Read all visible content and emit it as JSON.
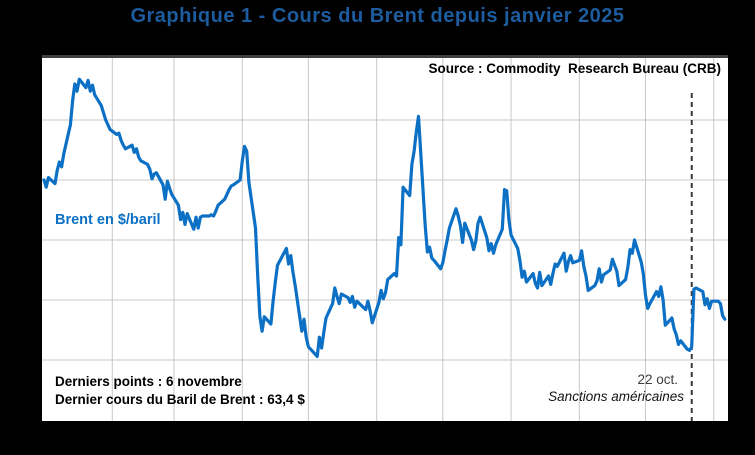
{
  "page": {
    "title": "Graphique 1 - Cours du Brent depuis janvier 2025",
    "source_label": "Source : Commodity  Research Bureau (CRB)",
    "series_label": "Brent en $/baril",
    "footnote_line1": "Derniers points : 6 novembre",
    "footnote_line2": "Dernier cours du Baril de Brent : 63,4 $",
    "annotation_date": "22 oct.",
    "annotation_text": "Sanctions américaines"
  },
  "colors": {
    "background": "#000000",
    "title": "#1d5c9e",
    "line": "#0c70c4",
    "grid": "#c8c8c8",
    "dashed": "#3a3a3a",
    "plot_bg": "#ffffff"
  },
  "chart_data": {
    "type": "line",
    "title": "Graphique 1 - Cours du Brent depuis janvier 2025",
    "ylabel": "Brent en $/baril ($)",
    "ylim": [
      55,
      85
    ],
    "y_gridlines": [
      80,
      75,
      70,
      65,
      60
    ],
    "x_gridlines": "monthly (fév. à nov. 2025)",
    "x_range": [
      "2025-01-01",
      "2025-11-06"
    ],
    "legend_position": "none",
    "grid": true,
    "annotation": {
      "date": "10-22",
      "label": "22 oct.",
      "text": "Sanctions américaines"
    },
    "last_point": {
      "date": "2025-11-06",
      "value": 63.4
    },
    "points": [
      [
        "01-01",
        75.0
      ],
      [
        "01-02",
        74.4
      ],
      [
        "01-03",
        75.2
      ],
      [
        "01-06",
        74.7
      ],
      [
        "01-07",
        75.8
      ],
      [
        "01-08",
        76.5
      ],
      [
        "01-09",
        76.1
      ],
      [
        "01-10",
        77.2
      ],
      [
        "01-13",
        79.6
      ],
      [
        "01-14",
        81.6
      ],
      [
        "01-15",
        83.0
      ],
      [
        "01-16",
        82.4
      ],
      [
        "01-17",
        83.4
      ],
      [
        "01-20",
        82.7
      ],
      [
        "01-21",
        83.3
      ],
      [
        "01-22",
        82.4
      ],
      [
        "01-23",
        82.9
      ],
      [
        "01-24",
        82.1
      ],
      [
        "01-27",
        81.2
      ],
      [
        "01-28",
        80.6
      ],
      [
        "01-29",
        80.0
      ],
      [
        "01-30",
        79.6
      ],
      [
        "01-31",
        79.2
      ],
      [
        "02-03",
        78.8
      ],
      [
        "02-04",
        78.9
      ],
      [
        "02-05",
        78.3
      ],
      [
        "02-06",
        77.9
      ],
      [
        "02-07",
        77.6
      ],
      [
        "02-10",
        77.9
      ],
      [
        "02-11",
        77.3
      ],
      [
        "02-12",
        77.6
      ],
      [
        "02-13",
        76.9
      ],
      [
        "02-14",
        76.6
      ],
      [
        "02-17",
        76.3
      ],
      [
        "02-18",
        75.9
      ],
      [
        "02-19",
        75.1
      ],
      [
        "02-20",
        75.5
      ],
      [
        "02-21",
        75.6
      ],
      [
        "02-24",
        74.6
      ],
      [
        "02-25",
        73.4
      ],
      [
        "02-26",
        74.9
      ],
      [
        "02-27",
        74.3
      ],
      [
        "02-28",
        73.8
      ],
      [
        "03-03",
        72.9
      ],
      [
        "03-04",
        71.7
      ],
      [
        "03-05",
        72.3
      ],
      [
        "03-06",
        71.3
      ],
      [
        "03-07",
        72.2
      ],
      [
        "03-10",
        70.9
      ],
      [
        "03-11",
        71.9
      ],
      [
        "03-12",
        71.0
      ],
      [
        "03-13",
        71.9
      ],
      [
        "03-14",
        72.0
      ],
      [
        "03-17",
        72.0
      ],
      [
        "03-18",
        72.1
      ],
      [
        "03-19",
        72.0
      ],
      [
        "03-20",
        72.4
      ],
      [
        "03-21",
        72.9
      ],
      [
        "03-24",
        73.4
      ],
      [
        "03-25",
        73.8
      ],
      [
        "03-26",
        74.2
      ],
      [
        "03-27",
        74.5
      ],
      [
        "03-28",
        74.6
      ],
      [
        "03-31",
        75.0
      ],
      [
        "04-01",
        76.6
      ],
      [
        "04-02",
        77.8
      ],
      [
        "04-03",
        77.4
      ],
      [
        "04-04",
        74.8
      ],
      [
        "04-07",
        71.0
      ],
      [
        "04-08",
        67.0
      ],
      [
        "04-09",
        63.6
      ],
      [
        "04-10",
        62.4
      ],
      [
        "04-11",
        63.6
      ],
      [
        "04-14",
        63.0
      ],
      [
        "04-15",
        64.9
      ],
      [
        "04-16",
        66.5
      ],
      [
        "04-17",
        67.9
      ],
      [
        "04-21",
        69.3
      ],
      [
        "04-22",
        68.0
      ],
      [
        "04-23",
        68.7
      ],
      [
        "04-24",
        67.3
      ],
      [
        "04-25",
        66.2
      ],
      [
        "04-28",
        62.4
      ],
      [
        "04-29",
        63.4
      ],
      [
        "04-30",
        61.9
      ],
      [
        "05-01",
        61.1
      ],
      [
        "05-02",
        60.9
      ],
      [
        "05-05",
        60.3
      ],
      [
        "05-06",
        61.9
      ],
      [
        "05-07",
        61.0
      ],
      [
        "05-08",
        62.3
      ],
      [
        "05-09",
        63.5
      ],
      [
        "05-12",
        64.7
      ],
      [
        "05-13",
        66.0
      ],
      [
        "05-14",
        65.3
      ],
      [
        "05-15",
        64.7
      ],
      [
        "05-16",
        65.5
      ],
      [
        "05-19",
        65.2
      ],
      [
        "05-20",
        64.8
      ],
      [
        "05-21",
        65.3
      ],
      [
        "05-22",
        64.4
      ],
      [
        "05-23",
        64.9
      ],
      [
        "05-27",
        64.2
      ],
      [
        "05-28",
        64.9
      ],
      [
        "05-29",
        64.1
      ],
      [
        "05-30",
        63.1
      ],
      [
        "06-02",
        64.8
      ],
      [
        "06-03",
        65.8
      ],
      [
        "06-04",
        65.1
      ],
      [
        "06-05",
        65.6
      ],
      [
        "06-06",
        66.7
      ],
      [
        "06-09",
        67.2
      ],
      [
        "06-10",
        67.0
      ],
      [
        "06-11",
        70.2
      ],
      [
        "06-12",
        69.6
      ],
      [
        "06-13",
        74.4
      ],
      [
        "06-16",
        73.7
      ],
      [
        "06-17",
        76.3
      ],
      [
        "06-18",
        77.4
      ],
      [
        "06-19",
        79.0
      ],
      [
        "06-20",
        80.3
      ],
      [
        "06-23",
        71.2
      ],
      [
        "06-24",
        69.0
      ],
      [
        "06-25",
        69.4
      ],
      [
        "06-26",
        68.5
      ],
      [
        "06-27",
        68.3
      ],
      [
        "06-30",
        67.6
      ],
      [
        "07-01",
        68.1
      ],
      [
        "07-02",
        69.1
      ],
      [
        "07-03",
        70.0
      ],
      [
        "07-04",
        71.0
      ],
      [
        "07-07",
        72.6
      ],
      [
        "07-08",
        72.0
      ],
      [
        "07-09",
        71.2
      ],
      [
        "07-10",
        69.8
      ],
      [
        "07-11",
        71.4
      ],
      [
        "07-14",
        70.0
      ],
      [
        "07-15",
        69.2
      ],
      [
        "07-16",
        69.9
      ],
      [
        "07-17",
        71.4
      ],
      [
        "07-18",
        71.9
      ],
      [
        "07-21",
        70.2
      ],
      [
        "07-22",
        69.1
      ],
      [
        "07-23",
        69.7
      ],
      [
        "07-24",
        68.9
      ],
      [
        "07-25",
        69.6
      ],
      [
        "07-28",
        70.9
      ],
      [
        "07-29",
        74.2
      ],
      [
        "07-30",
        74.1
      ],
      [
        "07-31",
        71.7
      ],
      [
        "08-01",
        70.4
      ],
      [
        "08-04",
        69.3
      ],
      [
        "08-05",
        68.3
      ],
      [
        "08-06",
        66.9
      ],
      [
        "08-07",
        67.4
      ],
      [
        "08-08",
        66.5
      ],
      [
        "08-11",
        67.2
      ],
      [
        "08-12",
        66.4
      ],
      [
        "08-13",
        66.0
      ],
      [
        "08-14",
        67.3
      ],
      [
        "08-15",
        66.2
      ],
      [
        "08-18",
        67.0
      ],
      [
        "08-19",
        66.3
      ],
      [
        "08-20",
        67.2
      ],
      [
        "08-21",
        68.0
      ],
      [
        "08-22",
        67.8
      ],
      [
        "08-25",
        68.9
      ],
      [
        "08-26",
        67.4
      ],
      [
        "08-27",
        68.2
      ],
      [
        "08-28",
        68.7
      ],
      [
        "08-29",
        68.1
      ],
      [
        "09-01",
        68.3
      ],
      [
        "09-02",
        69.1
      ],
      [
        "09-03",
        67.8
      ],
      [
        "09-04",
        67.0
      ],
      [
        "09-05",
        65.8
      ],
      [
        "09-08",
        66.2
      ],
      [
        "09-09",
        66.6
      ],
      [
        "09-10",
        67.6
      ],
      [
        "09-11",
        66.5
      ],
      [
        "09-12",
        67.1
      ],
      [
        "09-15",
        67.5
      ],
      [
        "09-16",
        68.4
      ],
      [
        "09-17",
        67.9
      ],
      [
        "09-18",
        67.4
      ],
      [
        "09-19",
        66.2
      ],
      [
        "09-22",
        66.7
      ],
      [
        "09-23",
        67.7
      ],
      [
        "09-24",
        69.2
      ],
      [
        "09-25",
        68.9
      ],
      [
        "09-26",
        70.0
      ],
      [
        "09-29",
        68.2
      ],
      [
        "09-30",
        67.2
      ],
      [
        "10-01",
        65.4
      ],
      [
        "10-02",
        64.3
      ],
      [
        "10-03",
        64.7
      ],
      [
        "10-06",
        65.7
      ],
      [
        "10-07",
        65.3
      ],
      [
        "10-08",
        66.1
      ],
      [
        "10-09",
        65.0
      ],
      [
        "10-10",
        62.9
      ],
      [
        "10-13",
        63.5
      ],
      [
        "10-14",
        62.6
      ],
      [
        "10-15",
        62.1
      ],
      [
        "10-16",
        61.3
      ],
      [
        "10-17",
        61.6
      ],
      [
        "10-20",
        60.9
      ],
      [
        "10-21",
        60.8
      ],
      [
        "10-22",
        61.1
      ],
      [
        "10-23",
        65.9
      ],
      [
        "10-24",
        66.0
      ],
      [
        "10-27",
        65.7
      ],
      [
        "10-28",
        64.6
      ],
      [
        "10-29",
        65.1
      ],
      [
        "10-30",
        64.3
      ],
      [
        "10-31",
        64.9
      ],
      [
        "11-03",
        64.9
      ],
      [
        "11-04",
        64.7
      ],
      [
        "11-05",
        63.7
      ],
      [
        "11-06",
        63.4
      ]
    ]
  }
}
